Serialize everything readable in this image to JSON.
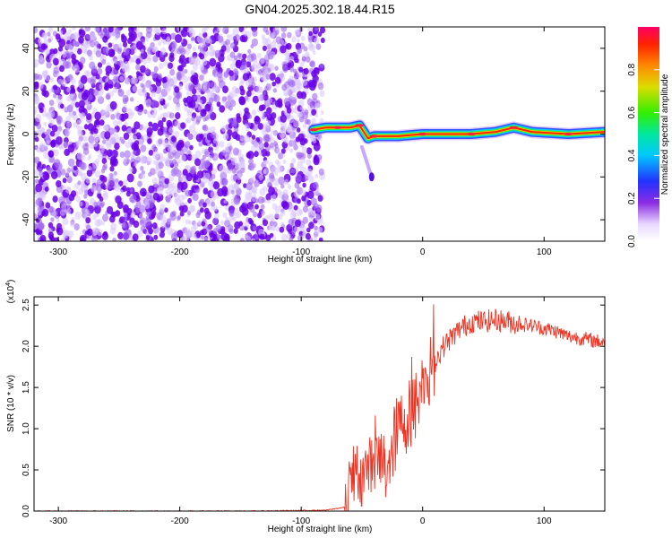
{
  "title": "GN04.2025.302.18.44.R15",
  "colors": {
    "dots": "#6a00e8",
    "snr_line": "#ee3322",
    "axis": "#000000"
  },
  "chart_data": [
    {
      "type": "heatmap",
      "name": "spectrogram",
      "xlabel": "Height of straight line (km)",
      "ylabel": "Frequency (Hz)",
      "xlim": [
        -320,
        150
      ],
      "ylim": [
        -50,
        50
      ],
      "xticks": [
        -300,
        -200,
        -100,
        0,
        100
      ],
      "xtick_labels": [
        "-300",
        "-200",
        "-100",
        "0",
        "100"
      ],
      "yticks": [
        -40,
        -20,
        0,
        20,
        40
      ],
      "ytick_labels": [
        "-40",
        "-20",
        "0",
        "20",
        "40"
      ],
      "noise_region_x": [
        -320,
        -82
      ],
      "signal_track": [
        {
          "x": -90,
          "y": 2
        },
        {
          "x": -80,
          "y": 3
        },
        {
          "x": -70,
          "y": 3
        },
        {
          "x": -60,
          "y": 3
        },
        {
          "x": -52,
          "y": 4
        },
        {
          "x": -45,
          "y": -2
        },
        {
          "x": -40,
          "y": -1
        },
        {
          "x": -20,
          "y": -1
        },
        {
          "x": 0,
          "y": 0
        },
        {
          "x": 20,
          "y": 0
        },
        {
          "x": 40,
          "y": 0
        },
        {
          "x": 60,
          "y": 1
        },
        {
          "x": 75,
          "y": 3
        },
        {
          "x": 90,
          "y": 1
        },
        {
          "x": 120,
          "y": 0
        },
        {
          "x": 150,
          "y": 1
        }
      ],
      "branch_track": [
        {
          "x": -50,
          "y": -6
        },
        {
          "x": -42,
          "y": -20
        }
      ],
      "colorbar": {
        "label": "Normalized spectral amplitude",
        "range": [
          0,
          1
        ],
        "ticks": [
          0.0,
          0.2,
          0.4,
          0.6,
          0.8
        ],
        "tick_labels": [
          "0.0",
          "0.2",
          "0.4",
          "0.6",
          "0.8"
        ]
      }
    },
    {
      "type": "line",
      "name": "snr",
      "xlabel": "Height of straight line (km)",
      "ylabel": "SNR (10 * v/v)",
      "y_scale_label": "(x10",
      "y_scale_exp": "4",
      "y_scale_close": ")",
      "xlim": [
        -320,
        150
      ],
      "ylim": [
        0,
        2.6
      ],
      "xticks": [
        -300,
        -200,
        -100,
        0,
        100
      ],
      "xtick_labels": [
        "-300",
        "-200",
        "-100",
        "0",
        "100"
      ],
      "yticks": [
        0.0,
        0.5,
        1.0,
        1.5,
        2.0,
        2.5
      ],
      "ytick_labels": [
        "0.0",
        "0.5",
        "1.0",
        "1.5",
        "2.0",
        "2.5"
      ],
      "series": [
        {
          "name": "SNR",
          "x": [
            -320,
            -260,
            -200,
            -140,
            -80,
            -63,
            -60,
            -55,
            -50,
            -45,
            -40,
            -35,
            -30,
            -25,
            -20,
            -15,
            -10,
            -5,
            0,
            5,
            10,
            15,
            20,
            30,
            40,
            50,
            60,
            70,
            80,
            90,
            100,
            110,
            120,
            130,
            140,
            150
          ],
          "values": [
            0.0,
            0.0,
            0.0,
            0.0,
            0.01,
            0.05,
            0.4,
            0.5,
            0.4,
            0.55,
            0.6,
            0.6,
            0.5,
            0.8,
            1.0,
            1.1,
            1.2,
            1.3,
            1.55,
            1.65,
            1.8,
            1.95,
            2.05,
            2.2,
            2.3,
            2.3,
            2.32,
            2.3,
            2.27,
            2.25,
            2.22,
            2.18,
            2.12,
            2.1,
            2.07,
            2.05
          ]
        }
      ]
    }
  ]
}
